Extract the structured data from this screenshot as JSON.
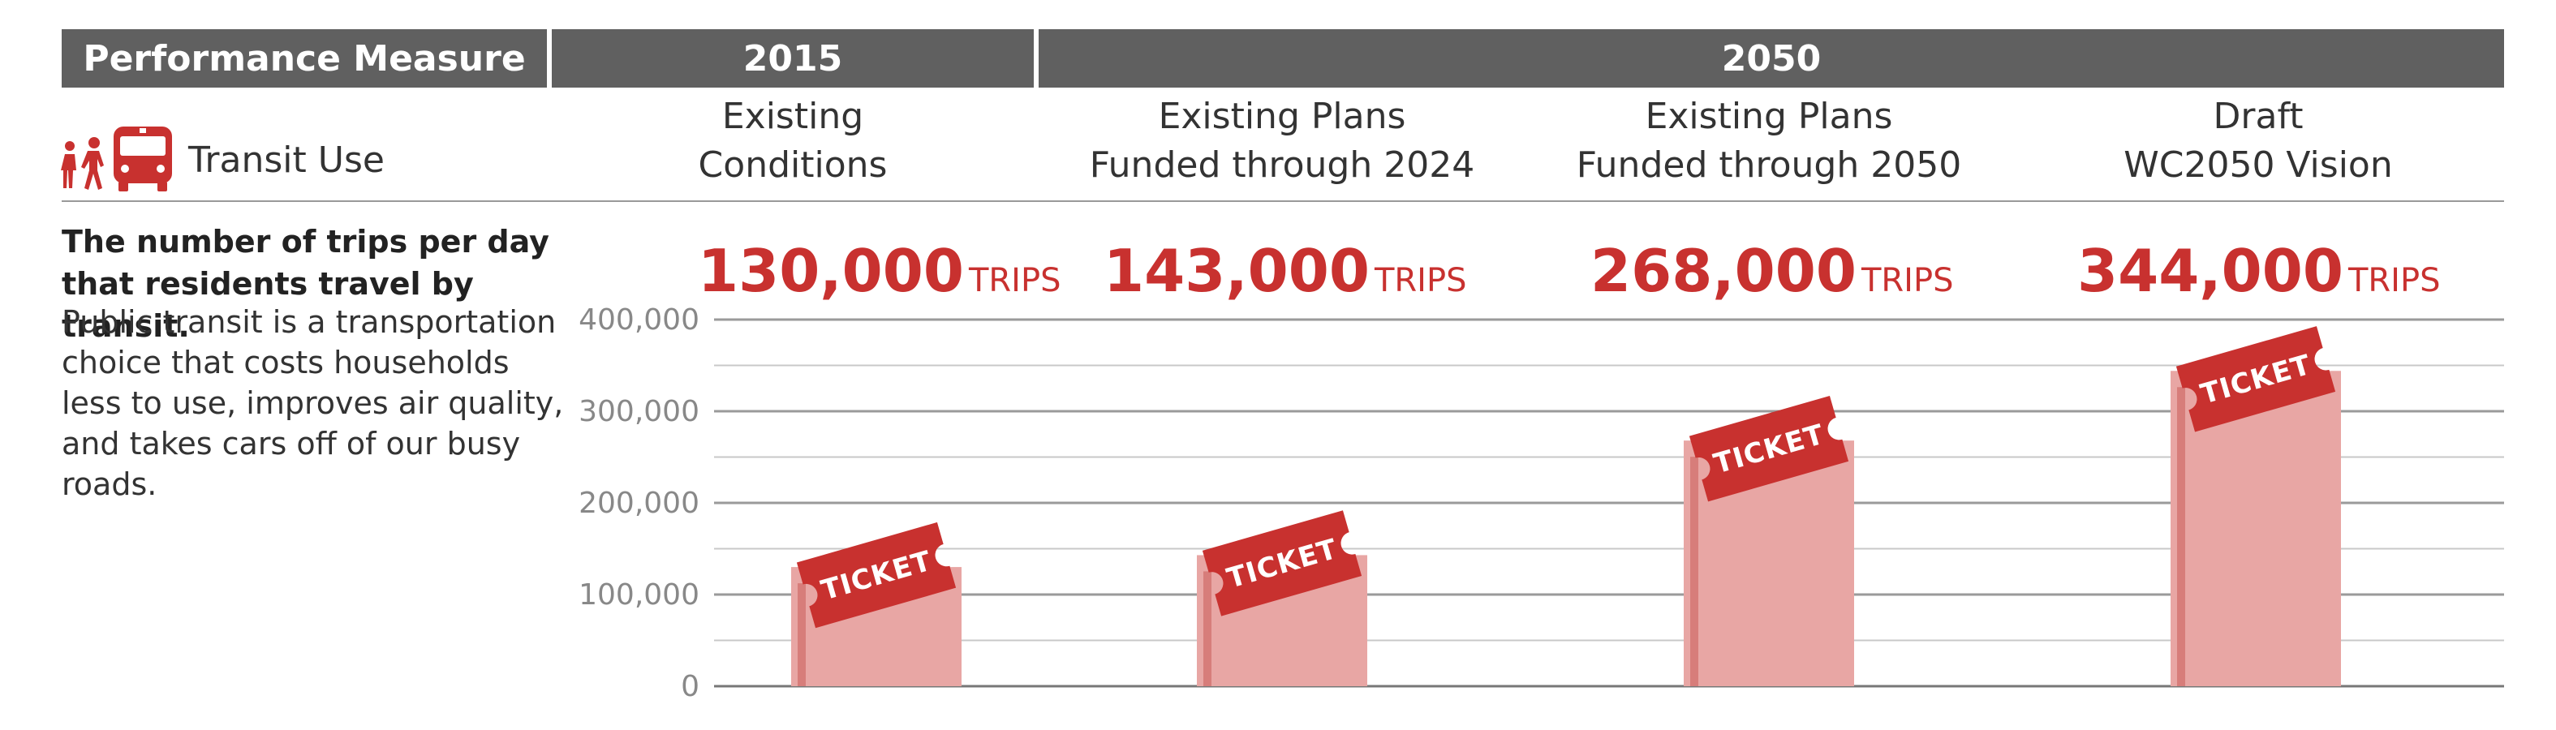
{
  "header": {
    "measure_label": "Performance Measure",
    "year_a": "2015",
    "year_b": "2050"
  },
  "measure": {
    "name": "Transit Use",
    "icons": [
      "pedestrian-icon",
      "pedestrian-icon",
      "bus-icon"
    ],
    "description_bold": "The number of trips per day that residents travel by transit.",
    "description_body": "Public transit is a transportation choice that costs households less to use, improves air quality, and takes cars off of our busy roads."
  },
  "columns": [
    {
      "line1": "Existing",
      "line2": "Conditions"
    },
    {
      "line1": "Existing Plans",
      "line2": "Funded through 2024"
    },
    {
      "line1": "Existing Plans",
      "line2": "Funded through 2050"
    },
    {
      "line1": "Draft",
      "line2": "WC2050 Vision"
    }
  ],
  "trip_labels": [
    {
      "value": "130,000",
      "unit": "TRIPS"
    },
    {
      "value": "143,000",
      "unit": "TRIPS"
    },
    {
      "value": "268,000",
      "unit": "TRIPS"
    },
    {
      "value": "344,000",
      "unit": "TRIPS"
    }
  ],
  "colors": {
    "header_bg": "#606060",
    "accent": "#c8312f",
    "bar_fill": "#e8a6a4",
    "ticket": "#c8312f",
    "grid": "#9a9a9a"
  },
  "chart_data": {
    "type": "bar",
    "categories": [
      "Existing Conditions",
      "Existing Plans Funded through 2024",
      "Existing Plans Funded through 2050",
      "Draft WC2050 Vision"
    ],
    "values": [
      130000,
      143000,
      268000,
      344000
    ],
    "ylim": [
      0,
      400000
    ],
    "yticks": [
      0,
      100000,
      200000,
      300000,
      400000
    ],
    "ytick_labels": [
      "0",
      "100,000",
      "200,000",
      "300,000",
      "400,000"
    ],
    "bar_label": "TICKET",
    "grid": true
  }
}
